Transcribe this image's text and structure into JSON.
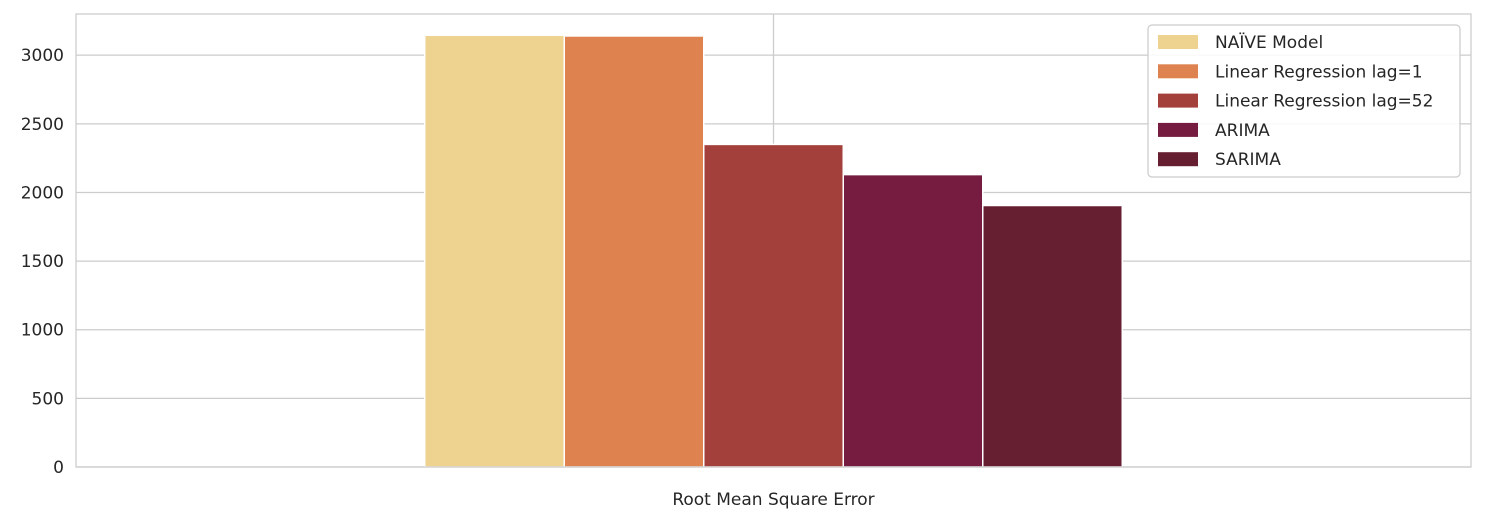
{
  "chart_data": {
    "type": "bar",
    "categories": [
      "Root Mean Square Error"
    ],
    "series": [
      {
        "name": "NAÏVE Model",
        "values": [
          3145
        ],
        "color": "#eed28f"
      },
      {
        "name": "Linear Regression lag=1",
        "values": [
          3140
        ],
        "color": "#de834f"
      },
      {
        "name": "Linear Regression lag=52",
        "values": [
          2350
        ],
        "color": "#a3403c"
      },
      {
        "name": "ARIMA",
        "values": [
          2130
        ],
        "color": "#761c41"
      },
      {
        "name": "SARIMA",
        "values": [
          1905
        ],
        "color": "#661f30"
      }
    ],
    "title": "",
    "xlabel": "",
    "ylabel": "",
    "ylim": [
      0,
      3300
    ],
    "yticks": [
      "0",
      "500",
      "1000",
      "1500",
      "2000",
      "2500",
      "3000"
    ],
    "grid": true,
    "legend_position": "top-right"
  }
}
